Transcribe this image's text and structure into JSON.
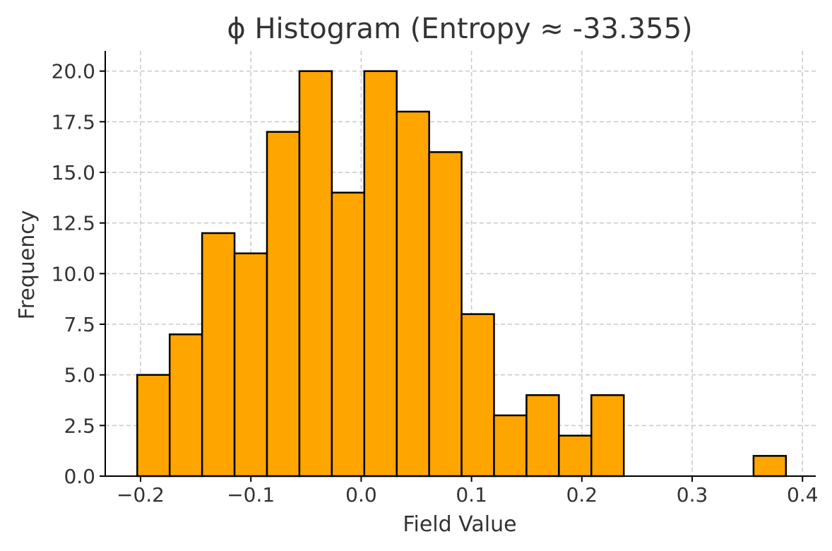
{
  "chart_data": {
    "type": "bar",
    "title": "ϕ Histogram (Entropy ≈ -33.355)",
    "xlabel": "Field Value",
    "ylabel": "Frequency",
    "xlim": [
      -0.232,
      0.412
    ],
    "ylim": [
      0,
      21
    ],
    "x_ticks": [
      -0.2,
      -0.1,
      0.0,
      0.1,
      0.2,
      0.3,
      0.4
    ],
    "x_tick_labels": [
      "−0.2",
      "−0.1",
      "0.0",
      "0.1",
      "0.2",
      "0.3",
      "0.4"
    ],
    "y_ticks": [
      0,
      2.5,
      5,
      7.5,
      10,
      12.5,
      15,
      17.5,
      20
    ],
    "y_tick_labels": [
      "0.0",
      "2.5",
      "5.0",
      "7.5",
      "10.0",
      "12.5",
      "15.0",
      "17.5",
      "20.0"
    ],
    "bin_edges": [
      -0.203,
      -0.1736,
      -0.1442,
      -0.1148,
      -0.0854,
      -0.056,
      -0.0266,
      0.0028,
      0.0322,
      0.0616,
      0.091,
      0.1204,
      0.1498,
      0.1792,
      0.2086,
      0.238,
      0.2674,
      0.2968,
      0.3262,
      0.3556,
      0.385
    ],
    "values": [
      5,
      7,
      12,
      11,
      17,
      20,
      14,
      20,
      18,
      16,
      8,
      3,
      4,
      2,
      4,
      0,
      0,
      0,
      0,
      1
    ],
    "bar_color": "#FFA500",
    "edge_color": "#000000",
    "grid": true
  }
}
